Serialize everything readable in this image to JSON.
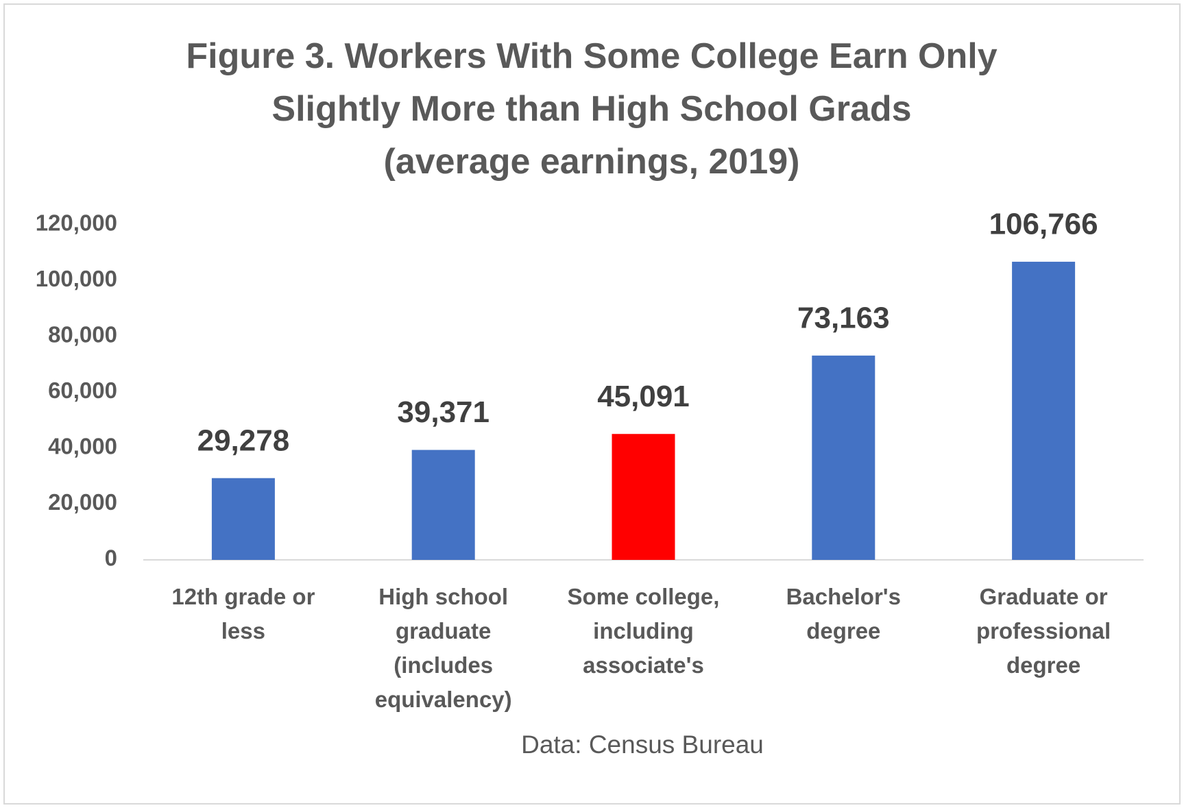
{
  "chart_data": {
    "type": "bar",
    "title": "Figure 3. Workers With Some College Earn Only Slightly More than High School Grads",
    "subtitle": "(average earnings, 2019)",
    "categories": [
      "12th grade or less",
      "High school graduate (includes equivalency)",
      "Some college, including associate's",
      "Bachelor's degree",
      "Graduate or professional degree"
    ],
    "values": [
      29278,
      39371,
      45091,
      73163,
      106766
    ],
    "value_labels": [
      "29,278",
      "39,371",
      "45,091",
      "73,163",
      "106,766"
    ],
    "colors": [
      "#4472c4",
      "#4472c4",
      "#ff0000",
      "#4472c4",
      "#4472c4"
    ],
    "ylim": [
      0,
      120000
    ],
    "yticks": [
      0,
      {
        "value": 20000,
        "label": "20,000"
      },
      {
        "value": 40000,
        "label": "40,000"
      },
      {
        "value": 60000,
        "label": "60,000"
      },
      {
        "value": 80000,
        "label": "80,000"
      },
      {
        "value": 100000,
        "label": "100,000"
      },
      {
        "value": 120000,
        "label": "120,000"
      }
    ],
    "grid": false,
    "source": "Data: Census Bureau"
  }
}
